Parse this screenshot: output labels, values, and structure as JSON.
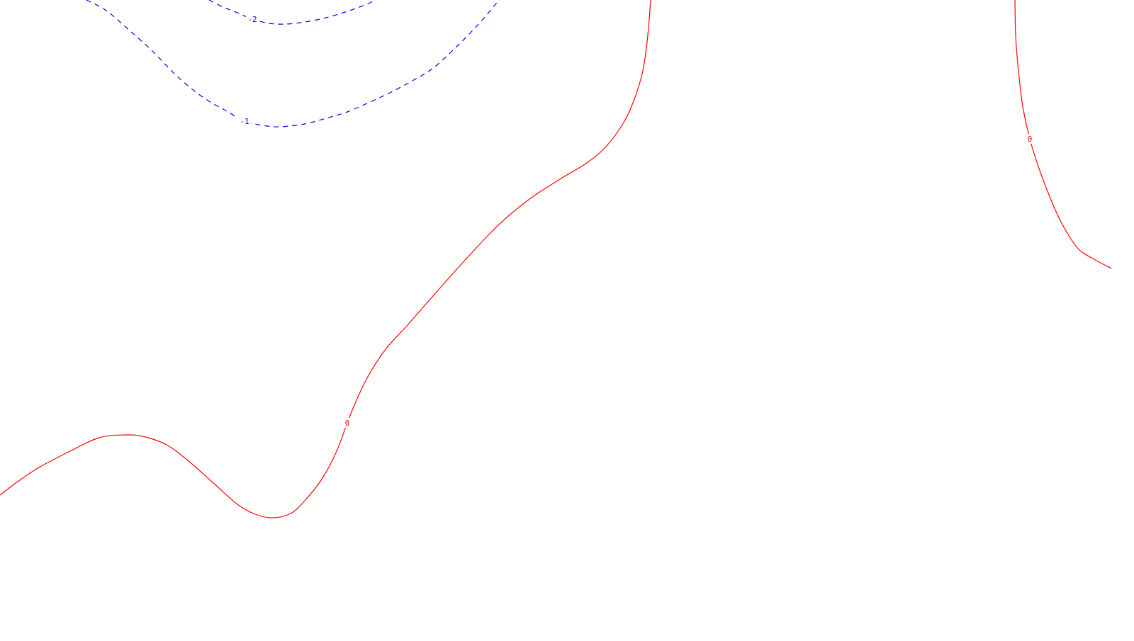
{
  "chart_data": {
    "type": "contour",
    "title": "",
    "xlabel": "",
    "ylabel": "",
    "grid": false,
    "legend": "none",
    "contours": [
      {
        "level": "-2",
        "label_text": "-2",
        "color": "#0000ff",
        "dash": "dashed",
        "label_anchor": [
          356,
          27
        ],
        "path": [
          [
            295,
            0
          ],
          [
            315,
            10
          ],
          [
            335,
            18
          ],
          [
            356,
            27
          ],
          [
            380,
            33
          ],
          [
            403,
            34
          ],
          [
            430,
            31
          ],
          [
            460,
            25
          ],
          [
            490,
            16
          ],
          [
            520,
            5
          ],
          [
            527,
            0
          ]
        ]
      },
      {
        "level": "-1",
        "label_text": "-1",
        "color": "#0000ff",
        "dash": "dashed",
        "label_anchor": [
          345,
          171
        ],
        "path": [
          [
            122,
            0
          ],
          [
            150,
            15
          ],
          [
            185,
            45
          ],
          [
            215,
            72
          ],
          [
            245,
            103
          ],
          [
            270,
            125
          ],
          [
            295,
            143
          ],
          [
            320,
            157
          ],
          [
            345,
            171
          ],
          [
            370,
            177
          ],
          [
            395,
            179
          ],
          [
            430,
            175
          ],
          [
            460,
            167
          ],
          [
            490,
            158
          ],
          [
            520,
            145
          ],
          [
            550,
            131
          ],
          [
            580,
            115
          ],
          [
            610,
            97
          ],
          [
            640,
            70
          ],
          [
            665,
            45
          ],
          [
            685,
            23
          ],
          [
            700,
            5
          ],
          [
            704,
            0
          ]
        ]
      },
      {
        "level": "0",
        "label_text": "0",
        "color": "#ff0000",
        "dash": "solid",
        "label_anchor": [
          490,
          597
        ],
        "path": [
          [
            0,
            699
          ],
          [
            25,
            680
          ],
          [
            55,
            660
          ],
          [
            95,
            639
          ],
          [
            140,
            618
          ],
          [
            180,
            614
          ],
          [
            205,
            617
          ],
          [
            235,
            628
          ],
          [
            265,
            650
          ],
          [
            300,
            681
          ],
          [
            335,
            712
          ],
          [
            360,
            726
          ],
          [
            385,
            731
          ],
          [
            410,
            725
          ],
          [
            430,
            707
          ],
          [
            455,
            675
          ],
          [
            475,
            637
          ],
          [
            490,
            597
          ],
          [
            503,
            565
          ],
          [
            520,
            530
          ],
          [
            545,
            492
          ],
          [
            575,
            459
          ],
          [
            610,
            419
          ],
          [
            650,
            374
          ],
          [
            690,
            331
          ],
          [
            715,
            307
          ],
          [
            750,
            279
          ],
          [
            790,
            253
          ],
          [
            828,
            230
          ],
          [
            855,
            207
          ],
          [
            880,
            173
          ],
          [
            895,
            140
          ],
          [
            907,
            100
          ],
          [
            914,
            50
          ],
          [
            918,
            0
          ]
        ]
      },
      {
        "level": "0",
        "label_text": "0",
        "color": "#ff0000",
        "dash": "solid",
        "label_anchor": [
          1453,
          196
        ],
        "path": [
          [
            1432,
            0
          ],
          [
            1433,
            50
          ],
          [
            1437,
            100
          ],
          [
            1443,
            150
          ],
          [
            1453,
            196
          ],
          [
            1465,
            235
          ],
          [
            1478,
            270
          ],
          [
            1492,
            303
          ],
          [
            1507,
            331
          ],
          [
            1522,
            352
          ],
          [
            1540,
            364
          ],
          [
            1568,
            379
          ]
        ]
      }
    ]
  }
}
